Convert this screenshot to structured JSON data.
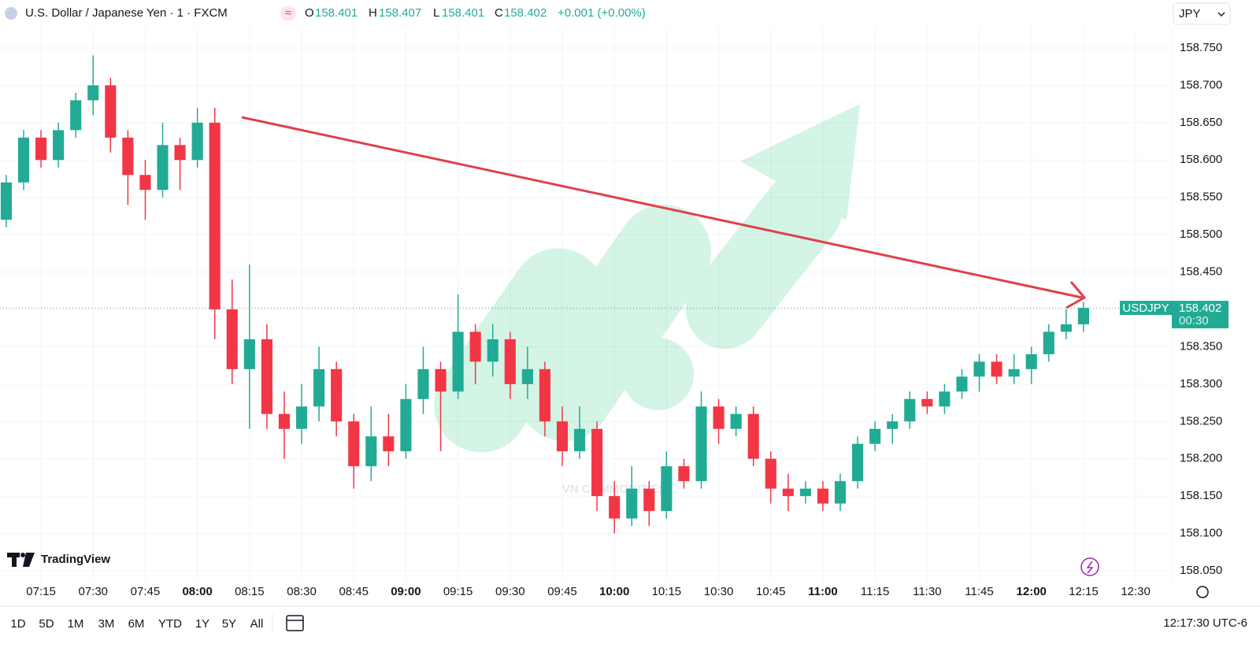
{
  "header": {
    "symbol": "U.S. Dollar / Japanese Yen · 1 · FXCM",
    "o_label": "O",
    "o": 158.401,
    "h_label": "H",
    "h": 158.407,
    "l_label": "L",
    "l": 158.401,
    "c_label": "C",
    "c": 158.402,
    "change": "+0.001 (+0.00%)",
    "currency": "JPY"
  },
  "chart_data": {
    "type": "candlestick",
    "x": [
      425,
      430,
      435,
      440,
      445,
      450,
      455,
      460,
      465,
      470,
      475,
      480,
      485,
      490,
      495,
      500,
      505,
      510,
      515,
      520,
      525,
      530,
      535,
      540,
      545,
      550,
      555,
      560,
      565,
      570,
      575,
      580,
      585,
      590,
      595,
      600,
      605,
      610,
      615,
      620,
      625,
      630,
      635,
      640,
      645,
      650,
      655,
      660,
      665,
      670,
      675,
      680,
      685,
      690,
      695,
      700,
      705,
      710,
      715,
      720,
      725,
      730,
      735
    ],
    "open": [
      158.52,
      158.57,
      158.63,
      158.6,
      158.64,
      158.68,
      158.7,
      158.63,
      158.58,
      158.56,
      158.62,
      158.6,
      158.65,
      158.4,
      158.32,
      158.36,
      158.26,
      158.24,
      158.27,
      158.32,
      158.25,
      158.19,
      158.23,
      158.21,
      158.28,
      158.32,
      158.29,
      158.37,
      158.33,
      158.36,
      158.3,
      158.32,
      158.25,
      158.21,
      158.24,
      158.15,
      158.12,
      158.16,
      158.13,
      158.19,
      158.17,
      158.27,
      158.24,
      158.26,
      158.2,
      158.16,
      158.15,
      158.16,
      158.14,
      158.17,
      158.22,
      158.24,
      158.25,
      158.28,
      158.27,
      158.29,
      158.31,
      158.33,
      158.31,
      158.32,
      158.34,
      158.37,
      158.38
    ],
    "high": [
      158.58,
      158.64,
      158.64,
      158.65,
      158.69,
      158.74,
      158.71,
      158.64,
      158.6,
      158.65,
      158.63,
      158.67,
      158.67,
      158.44,
      158.46,
      158.38,
      158.29,
      158.3,
      158.35,
      158.33,
      158.26,
      158.27,
      158.26,
      158.3,
      158.35,
      158.33,
      158.42,
      158.38,
      158.38,
      158.37,
      158.35,
      158.33,
      158.27,
      158.27,
      158.25,
      158.17,
      158.19,
      158.17,
      158.21,
      158.2,
      158.29,
      158.28,
      158.27,
      158.27,
      158.21,
      158.18,
      158.17,
      158.17,
      158.18,
      158.23,
      158.25,
      158.26,
      158.29,
      158.29,
      158.3,
      158.32,
      158.34,
      158.34,
      158.34,
      158.35,
      158.38,
      158.4,
      158.41
    ],
    "low": [
      158.51,
      158.56,
      158.59,
      158.59,
      158.63,
      158.66,
      158.61,
      158.54,
      158.52,
      158.55,
      158.56,
      158.59,
      158.36,
      158.3,
      158.24,
      158.24,
      158.2,
      158.22,
      158.25,
      158.23,
      158.16,
      158.17,
      158.19,
      158.2,
      158.26,
      158.21,
      158.28,
      158.3,
      158.31,
      158.28,
      158.28,
      158.23,
      158.19,
      158.2,
      158.13,
      158.1,
      158.11,
      158.11,
      158.12,
      158.16,
      158.16,
      158.22,
      158.23,
      158.19,
      158.14,
      158.13,
      158.14,
      158.13,
      158.13,
      158.16,
      158.21,
      158.22,
      158.24,
      158.26,
      158.26,
      158.28,
      158.29,
      158.3,
      158.3,
      158.3,
      158.33,
      158.36,
      158.37
    ],
    "close": [
      158.57,
      158.63,
      158.6,
      158.64,
      158.68,
      158.7,
      158.63,
      158.58,
      158.56,
      158.62,
      158.6,
      158.65,
      158.4,
      158.32,
      158.36,
      158.26,
      158.24,
      158.27,
      158.32,
      158.25,
      158.19,
      158.23,
      158.21,
      158.28,
      158.32,
      158.29,
      158.37,
      158.33,
      158.36,
      158.3,
      158.32,
      158.25,
      158.21,
      158.24,
      158.15,
      158.12,
      158.16,
      158.13,
      158.19,
      158.17,
      158.27,
      158.24,
      158.26,
      158.2,
      158.16,
      158.15,
      158.16,
      158.14,
      158.17,
      158.22,
      158.24,
      158.25,
      158.28,
      158.27,
      158.29,
      158.31,
      158.33,
      158.31,
      158.32,
      158.34,
      158.37,
      158.38,
      158.402
    ],
    "up_color": "#22ab94",
    "down_color": "#f23645",
    "xlim": [
      423.2,
      760.4
    ],
    "xticks": [
      {
        "value": 435,
        "label": "07:15"
      },
      {
        "value": 450,
        "label": "07:30"
      },
      {
        "value": 465,
        "label": "07:45"
      },
      {
        "value": 480,
        "label": "08:00"
      },
      {
        "value": 495,
        "label": "08:15"
      },
      {
        "value": 510,
        "label": "08:30"
      },
      {
        "value": 525,
        "label": "08:45"
      },
      {
        "value": 540,
        "label": "09:00"
      },
      {
        "value": 555,
        "label": "09:15"
      },
      {
        "value": 570,
        "label": "09:30"
      },
      {
        "value": 585,
        "label": "09:45"
      },
      {
        "value": 600,
        "label": "10:00"
      },
      {
        "value": 615,
        "label": "10:15"
      },
      {
        "value": 630,
        "label": "10:30"
      },
      {
        "value": 645,
        "label": "10:45"
      },
      {
        "value": 660,
        "label": "11:00"
      },
      {
        "value": 675,
        "label": "11:15"
      },
      {
        "value": 690,
        "label": "11:30"
      },
      {
        "value": 705,
        "label": "11:45"
      },
      {
        "value": 720,
        "label": "12:00"
      },
      {
        "value": 735,
        "label": "12:15"
      },
      {
        "value": 750,
        "label": "12:30"
      }
    ],
    "ylim": [
      158.04,
      158.78
    ],
    "yticks": [
      {
        "value": 158.05,
        "label": "158.050"
      },
      {
        "value": 158.1,
        "label": "158.100"
      },
      {
        "value": 158.15,
        "label": "158.150"
      },
      {
        "value": 158.2,
        "label": "158.200"
      },
      {
        "value": 158.25,
        "label": "158.250"
      },
      {
        "value": 158.3,
        "label": "158.300"
      },
      {
        "value": 158.35,
        "label": "158.350"
      },
      {
        "value": 158.4,
        "label": "158.400"
      },
      {
        "value": 158.45,
        "label": "158.450"
      },
      {
        "value": 158.5,
        "label": "158.500"
      },
      {
        "value": 158.55,
        "label": "158.550"
      },
      {
        "value": 158.6,
        "label": "158.600"
      },
      {
        "value": 158.65,
        "label": "158.650"
      },
      {
        "value": 158.7,
        "label": "158.700"
      },
      {
        "value": 158.75,
        "label": "158.750"
      }
    ],
    "grid": true,
    "last_price": 158.402,
    "price_tag_name": "USDJPY",
    "countdown": "00:30",
    "watermark": "VN COMMODITIES",
    "logo": "TradingView"
  },
  "toolbar": {
    "ranges": [
      "1D",
      "5D",
      "1M",
      "3M",
      "6M",
      "YTD",
      "1Y",
      "5Y",
      "All"
    ],
    "clock": "12:17:30 UTC-6"
  }
}
